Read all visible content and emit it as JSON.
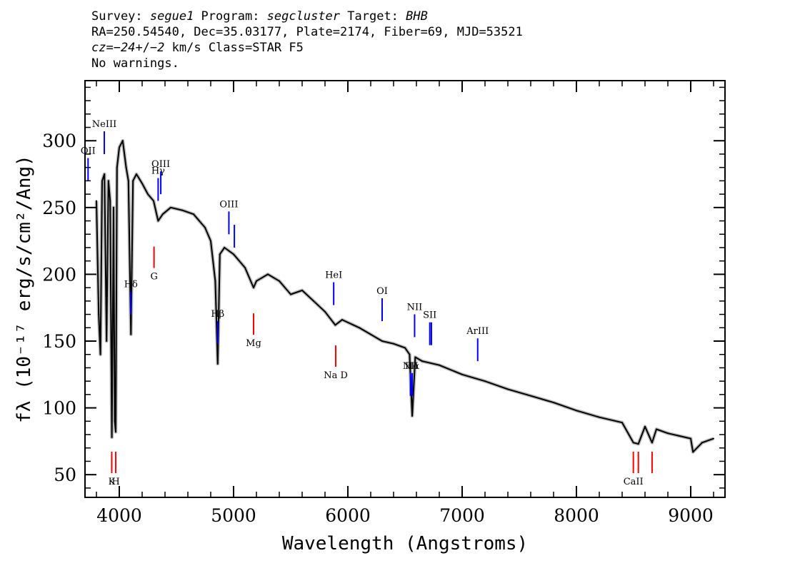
{
  "header": {
    "line1": [
      {
        "text": "Survey: ",
        "italic": false
      },
      {
        "text": "segue1",
        "italic": true
      },
      {
        "text": " Program: ",
        "italic": false
      },
      {
        "text": "segcluster",
        "italic": true
      },
      {
        "text": " Target: ",
        "italic": false
      },
      {
        "text": "BHB",
        "italic": true
      }
    ],
    "line2": "RA=250.54540, Dec=35.03177, Plate=2174, Fiber=69, MJD=53521",
    "line3": [
      {
        "text": "cz=",
        "italic": true
      },
      {
        "text": "−24",
        "italic": true
      },
      {
        "text": "+/",
        "italic": false
      },
      {
        "text": "−2",
        "italic": true
      },
      {
        "text": " km/s Class=STAR F5",
        "italic": false
      }
    ],
    "line4": "No warnings."
  },
  "chart_data": {
    "type": "line",
    "xlabel": "Wavelength (Angstroms)",
    "ylabel": "fλ (10⁻¹⁷ erg/s/cm²/Ang)",
    "xlim": [
      3700,
      9300
    ],
    "ylim": [
      33,
      345
    ],
    "xticks": [
      4000,
      5000,
      6000,
      7000,
      8000,
      9000
    ],
    "yticks": [
      50,
      100,
      150,
      200,
      250,
      300
    ],
    "series": [
      {
        "x": [
          3800,
          3820,
          3835,
          3850,
          3870,
          3889,
          3905,
          3920,
          3935,
          3950,
          3960,
          3969,
          3980,
          4000,
          4030,
          4060,
          4080,
          4102,
          4120,
          4150,
          4200,
          4250,
          4300,
          4340,
          4380,
          4450,
          4550,
          4650,
          4750,
          4800,
          4840,
          4861,
          4880,
          4920,
          5000,
          5100,
          5175,
          5200,
          5300,
          5400,
          5500,
          5600,
          5700,
          5800,
          5890,
          5950,
          6100,
          6200,
          6300,
          6400,
          6500,
          6540,
          6563,
          6590,
          6650,
          6800,
          7000,
          7200,
          7400,
          7600,
          7800,
          8000,
          8200,
          8400,
          8498,
          8542,
          8600,
          8662,
          8700,
          8800,
          8900,
          9000,
          9020,
          9100,
          9200
        ],
        "y": [
          255,
          170,
          140,
          270,
          275,
          150,
          270,
          255,
          78,
          250,
          90,
          82,
          280,
          295,
          300,
          280,
          270,
          155,
          270,
          275,
          268,
          260,
          255,
          240,
          245,
          250,
          248,
          245,
          235,
          225,
          195,
          133,
          215,
          220,
          215,
          205,
          190,
          195,
          200,
          195,
          185,
          188,
          180,
          172,
          162,
          166,
          160,
          155,
          150,
          148,
          145,
          140,
          94,
          138,
          135,
          132,
          125,
          120,
          114,
          109,
          104,
          98,
          93,
          89,
          74,
          73,
          86,
          74,
          84,
          81,
          79,
          77,
          67,
          74,
          77
        ]
      }
    ],
    "emission_lines": [
      {
        "label": "OII",
        "x": 3727
      },
      {
        "label": "NeIII",
        "x": 3869
      },
      {
        "label": "Hδ",
        "x": 4102
      },
      {
        "label": "Hγ",
        "x": 4340
      },
      {
        "label": "OIII",
        "x": 4363
      },
      {
        "label": "Hβ",
        "x": 4861
      },
      {
        "label": "OIII",
        "x": 4959
      },
      {
        "label": "",
        "x": 5007
      },
      {
        "label": "HeI",
        "x": 5876
      },
      {
        "label": "OI",
        "x": 6300
      },
      {
        "label": "NII",
        "x": 6548
      },
      {
        "label": "Hα",
        "x": 6563
      },
      {
        "label": "NII",
        "x": 6584
      },
      {
        "label": "SII",
        "x": 6717
      },
      {
        "label": "",
        "x": 6731
      },
      {
        "label": "ArIII",
        "x": 7136
      }
    ],
    "absorption_lines": [
      {
        "label": "K",
        "x": 3934
      },
      {
        "label": "H",
        "x": 3969
      },
      {
        "label": "G",
        "x": 4304
      },
      {
        "label": "Mg",
        "x": 5175
      },
      {
        "label": "Na D",
        "x": 5894
      },
      {
        "label": "CaII",
        "x": 8498
      },
      {
        "label": "",
        "x": 8542
      },
      {
        "label": "",
        "x": 8662
      }
    ]
  },
  "colors": {
    "spectrum": "#000000",
    "error": "#bdbdbd",
    "emission": "#0000ff",
    "absorption": "#ff0000"
  }
}
